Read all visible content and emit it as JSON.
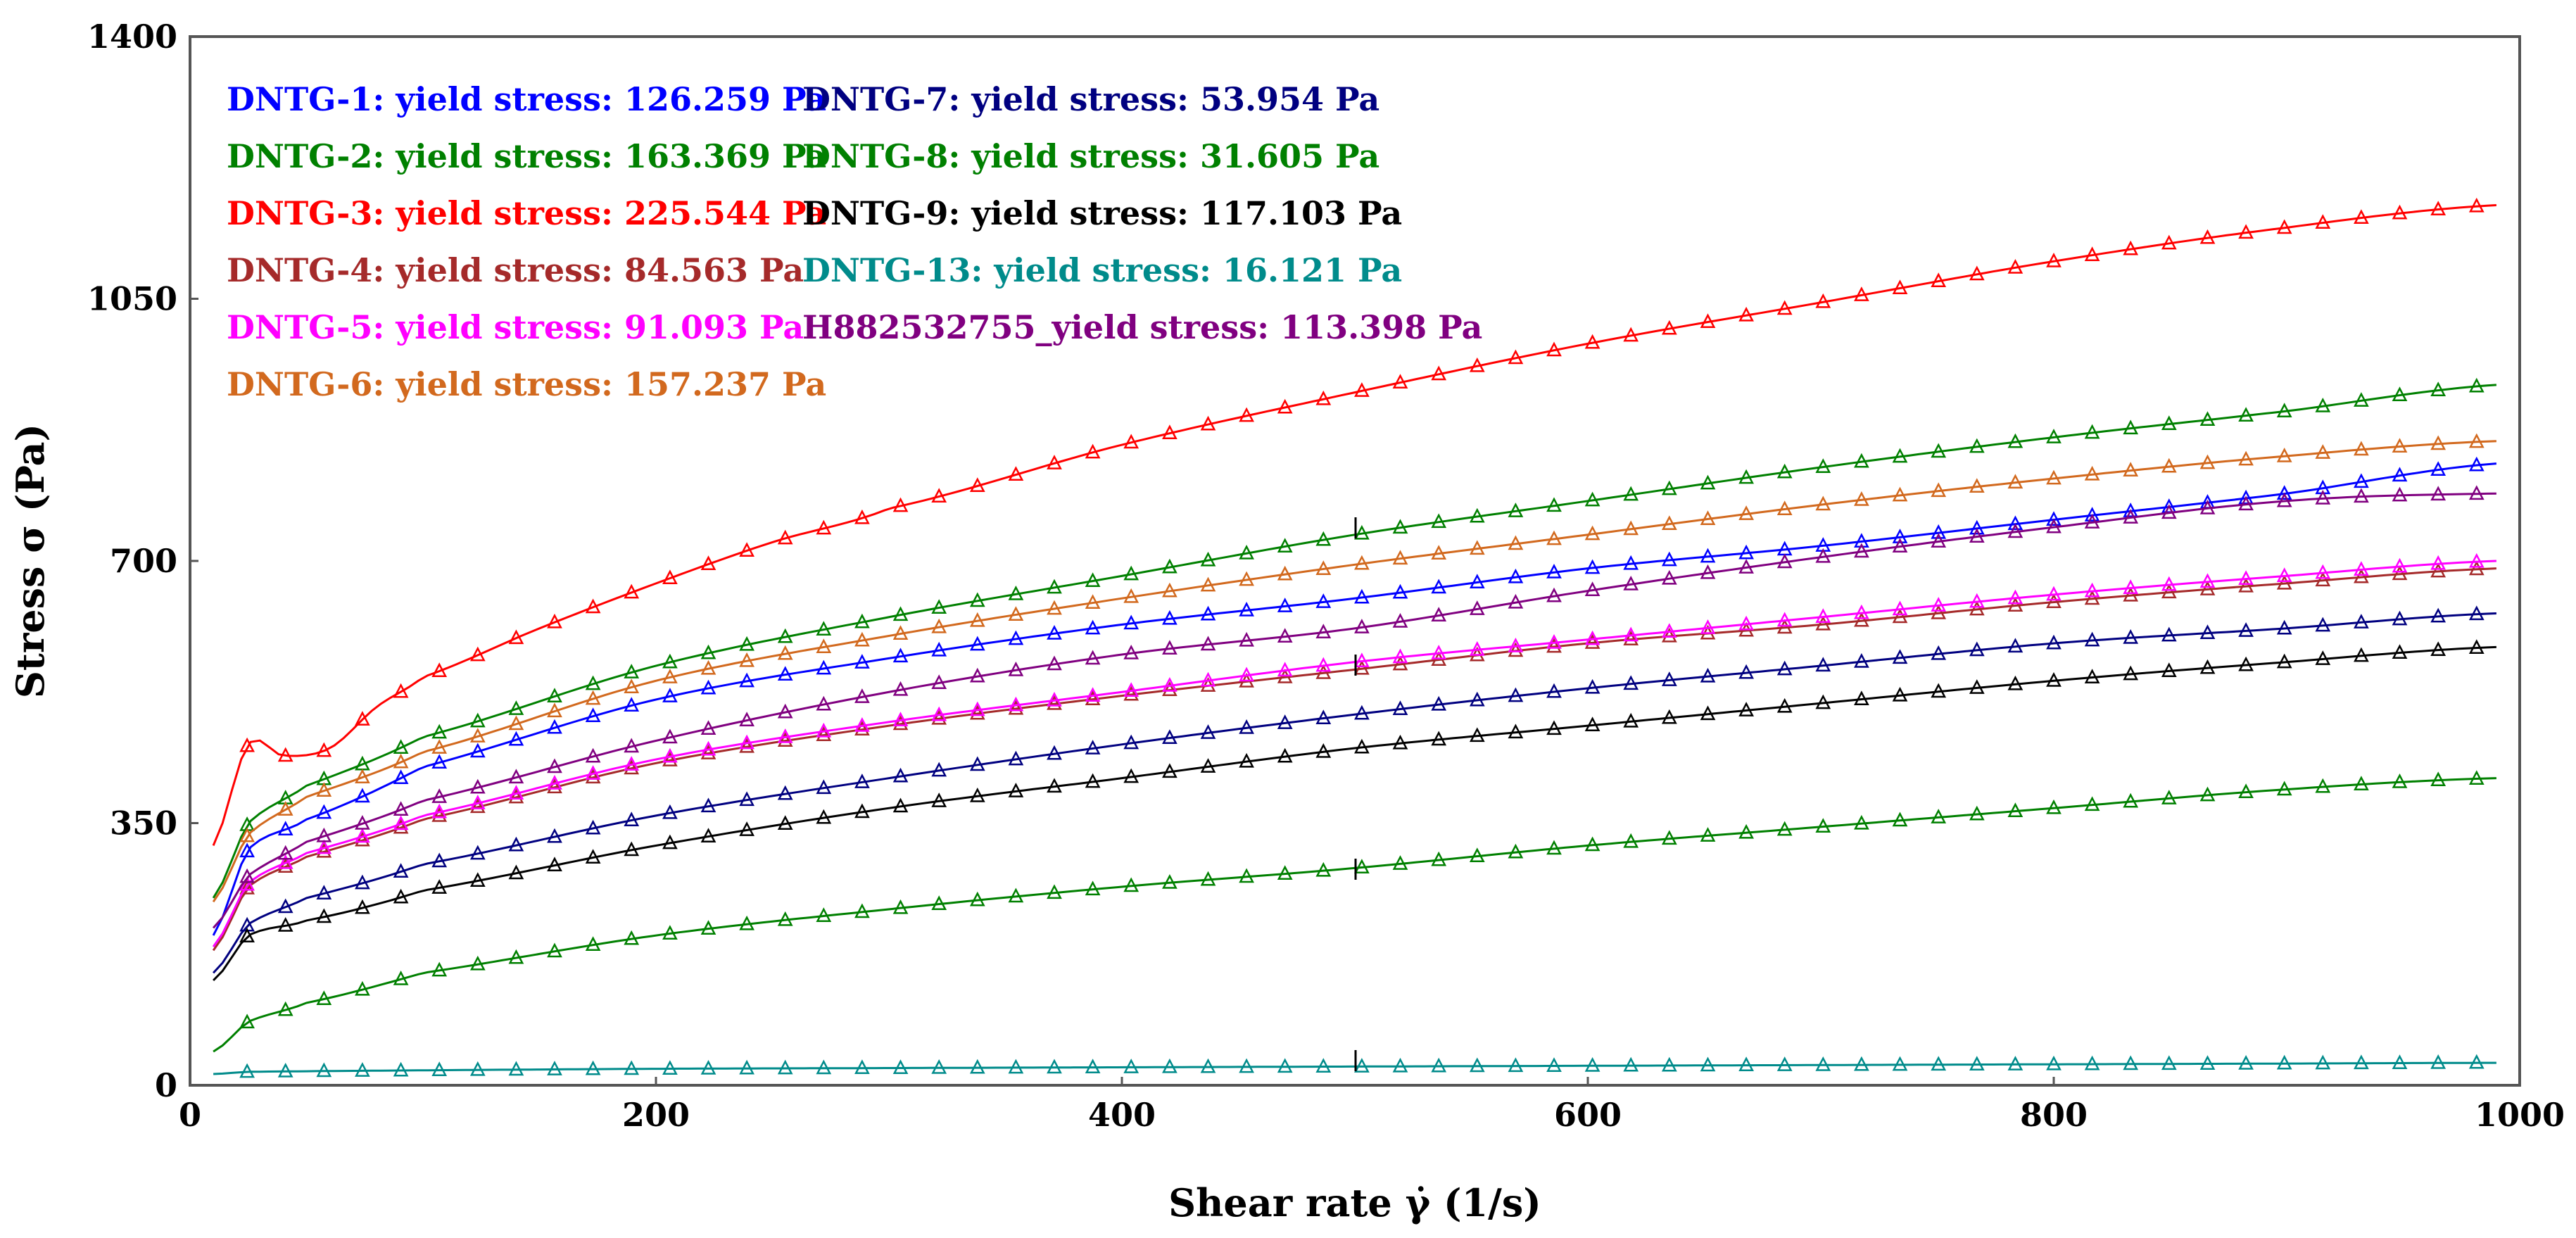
{
  "chart_data": {
    "type": "line",
    "title": "",
    "xlabel": "Shear rate γ̇ (1/s)",
    "ylabel": "Stress σ (Pa)",
    "xlim": [
      0,
      1000
    ],
    "ylim": [
      0,
      1400
    ],
    "xticks": [
      "0",
      "200",
      "400",
      "600",
      "800",
      "1000"
    ],
    "yticks": [
      "0",
      "350",
      "700",
      "1050",
      "1400"
    ],
    "grid": false,
    "marker": "open-triangle",
    "legend_position": "top-left",
    "series": [
      {
        "name": "DNTG-1",
        "legend": "DNTG-1: yield stress: 126.259 Pa",
        "color": "#0000ff",
        "x": [
          10,
          25,
          50,
          100,
          200,
          300,
          400,
          500,
          600,
          700,
          800,
          900,
          990
        ],
        "y": [
          200,
          315,
          355,
          425,
          515,
          570,
          615,
          650,
          690,
          720,
          755,
          790,
          830
        ]
      },
      {
        "name": "DNTG-2",
        "legend": "DNTG-2: yield stress: 163.369 Pa",
        "color": "#008000",
        "x": [
          10,
          25,
          50,
          100,
          200,
          300,
          400,
          500,
          600,
          700,
          800,
          900,
          990
        ],
        "y": [
          250,
          350,
          400,
          465,
          560,
          625,
          680,
          735,
          780,
          825,
          865,
          900,
          935
        ]
      },
      {
        "name": "DNTG-3",
        "legend": "DNTG-3: yield stress: 225.544 Pa",
        "color": "#ff0000",
        "x": [
          10,
          25,
          40,
          60,
          80,
          100,
          150,
          200,
          250,
          300,
          400,
          500,
          600,
          700,
          800,
          900,
          990
        ],
        "y": [
          320,
          455,
          440,
          450,
          505,
          545,
          610,
          670,
          725,
          770,
          855,
          925,
          990,
          1045,
          1100,
          1145,
          1175
        ]
      },
      {
        "name": "DNTG-4",
        "legend": "DNTG-4: yield stress: 84.563 Pa",
        "color": "#a52a2a",
        "x": [
          10,
          25,
          50,
          100,
          200,
          300,
          400,
          500,
          600,
          700,
          800,
          900,
          990
        ],
        "y": [
          180,
          265,
          305,
          355,
          430,
          480,
          520,
          555,
          590,
          615,
          645,
          670,
          690
        ]
      },
      {
        "name": "DNTG-5",
        "legend": "DNTG-5: yield stress: 91.093 Pa",
        "color": "#ff00ff",
        "x": [
          10,
          25,
          50,
          100,
          200,
          300,
          400,
          500,
          600,
          700,
          800,
          900,
          990
        ],
        "y": [
          185,
          270,
          310,
          360,
          435,
          485,
          525,
          565,
          595,
          625,
          655,
          680,
          700
        ]
      },
      {
        "name": "DNTG-6",
        "legend": "DNTG-6: yield stress: 157.237 Pa",
        "color": "#d2691e",
        "x": [
          10,
          25,
          50,
          100,
          200,
          300,
          400,
          500,
          600,
          700,
          800,
          900,
          990
        ],
        "y": [
          245,
          335,
          385,
          445,
          540,
          600,
          650,
          695,
          735,
          775,
          810,
          840,
          860
        ]
      },
      {
        "name": "DNTG-7",
        "legend": "DNTG-7: yield stress: 53.954 Pa",
        "color": "#000080",
        "x": [
          10,
          25,
          50,
          100,
          200,
          300,
          400,
          500,
          600,
          700,
          800,
          900,
          990
        ],
        "y": [
          150,
          215,
          250,
          295,
          360,
          410,
          455,
          495,
          530,
          560,
          590,
          610,
          630
        ]
      },
      {
        "name": "DNTG-8",
        "legend": "DNTG-8: yield stress: 31.605 Pa",
        "color": "#008000",
        "x": [
          10,
          25,
          50,
          100,
          200,
          300,
          400,
          500,
          600,
          700,
          800,
          900,
          990
        ],
        "y": [
          45,
          85,
          110,
          150,
          200,
          235,
          265,
          290,
          320,
          345,
          370,
          395,
          410
        ]
      },
      {
        "name": "DNTG-9",
        "legend": "DNTG-9: yield stress: 117.103 Pa",
        "color": "#000000",
        "x": [
          10,
          25,
          50,
          100,
          200,
          300,
          400,
          500,
          600,
          700,
          800,
          900,
          990
        ],
        "y": [
          140,
          200,
          220,
          260,
          320,
          370,
          410,
          450,
          480,
          510,
          540,
          565,
          585
        ]
      },
      {
        "name": "DNTG-13",
        "legend": "DNTG-13: yield stress: 16.121 Pa",
        "color": "#008b8b",
        "x": [
          10,
          25,
          100,
          200,
          300,
          400,
          500,
          600,
          700,
          800,
          900,
          990
        ],
        "y": [
          15,
          18,
          20,
          22,
          23,
          24,
          25,
          26,
          27,
          28,
          29,
          30
        ]
      },
      {
        "name": "H882532755",
        "legend": "H882532755_yield stress: 113.398 Pa",
        "color": "#800080",
        "x": [
          10,
          25,
          50,
          100,
          200,
          300,
          400,
          500,
          600,
          700,
          800,
          900,
          990
        ],
        "y": [
          210,
          280,
          325,
          380,
          460,
          525,
          575,
          610,
          660,
          705,
          745,
          780,
          790
        ]
      }
    ]
  }
}
